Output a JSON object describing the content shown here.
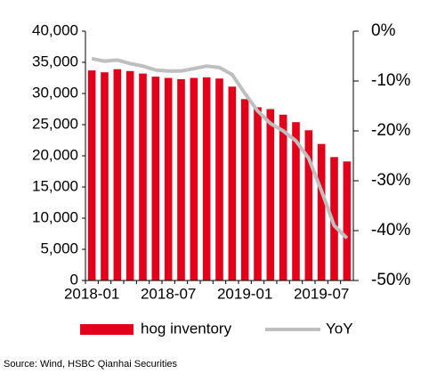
{
  "chart_data": {
    "type": "bar_line",
    "categories": [
      "2018-01",
      null,
      null,
      null,
      null,
      null,
      "2018-07",
      null,
      null,
      null,
      null,
      null,
      "2019-01",
      null,
      null,
      null,
      null,
      null,
      "2019-07",
      null,
      null
    ],
    "series": [
      {
        "name": "hog inventory",
        "type": "bar",
        "color": "#e2001a",
        "values": [
          33700,
          33400,
          33900,
          33600,
          33200,
          32700,
          32500,
          32300,
          32500,
          32600,
          32400,
          31100,
          29100,
          27800,
          27500,
          26600,
          25400,
          24100,
          21900,
          19800,
          19100
        ]
      },
      {
        "name": "YoY",
        "type": "line",
        "axis": "y2",
        "color": "#bfbfbf",
        "values": [
          -5.5,
          -6,
          -5.8,
          -6.5,
          -7,
          -7.8,
          -8,
          -8,
          -7.5,
          -7,
          -7.3,
          -8.7,
          -12.5,
          -16,
          -18.5,
          -20,
          -22,
          -25.5,
          -32,
          -39,
          -41.5
        ]
      }
    ],
    "ylim": [
      0,
      40000
    ],
    "yticks": [
      {
        "value": 0,
        "label": "0"
      },
      {
        "value": 5000,
        "label": "5,000"
      },
      {
        "value": 10000,
        "label": "10,000"
      },
      {
        "value": 15000,
        "label": "15,000"
      },
      {
        "value": 20000,
        "label": "20,000"
      },
      {
        "value": 25000,
        "label": "25,000"
      },
      {
        "value": 30000,
        "label": "30,000"
      },
      {
        "value": 35000,
        "label": "35,000"
      },
      {
        "value": 40000,
        "label": "40,000"
      }
    ],
    "y2lim": [
      -50,
      0
    ],
    "y2ticks": [
      {
        "value": -50,
        "label": "-50%"
      },
      {
        "value": -40,
        "label": "-40%"
      },
      {
        "value": -30,
        "label": "-30%"
      },
      {
        "value": -20,
        "label": "-20%"
      },
      {
        "value": -10,
        "label": "-10%"
      },
      {
        "value": 0,
        "label": "0%"
      }
    ],
    "source": "Source: Wind, HSBC Qianhai Securities"
  }
}
